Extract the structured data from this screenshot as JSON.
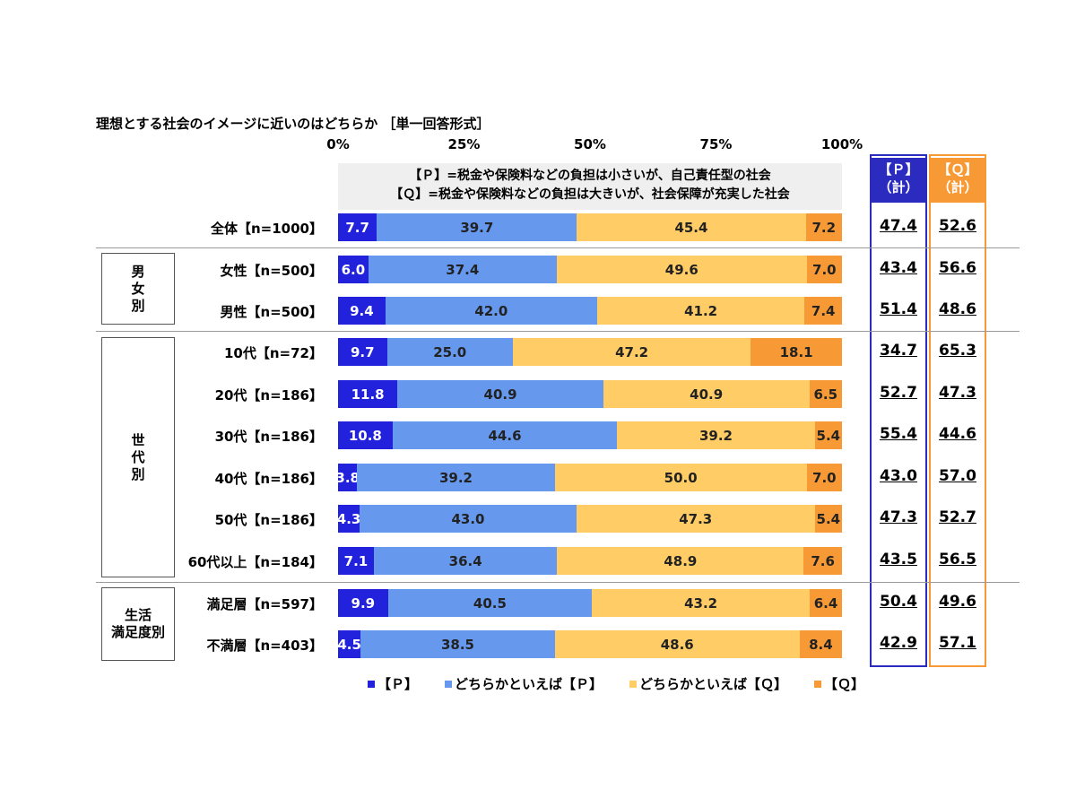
{
  "title": "理想とする社会のイメージに近いのはどちらか ［単一回答形式］",
  "definitions": {
    "p": "【Ｐ】=税金や保険料などの負担は小さいが、自己責任型の社会",
    "q": "【Ｑ】=税金や保険料などの負担は大きいが、社会保障が充実した社会"
  },
  "groups": [
    {
      "label": "男\n女\n別"
    },
    {
      "label": "世\n代\n別"
    },
    {
      "label": "生活\n満足度別"
    }
  ],
  "totals_headers": {
    "p": "【Ｐ】\n（計）",
    "q": "【Ｑ】\n（計）"
  },
  "legend": [
    "■【Ｐ】",
    "■どちらかといえば【Ｐ】",
    "■どちらかといえば【Ｑ】",
    "■【Ｑ】"
  ],
  "colors": {
    "p": "#2222dd",
    "bp": "#6699ee",
    "bq": "#ffcc66",
    "q": "#f79a36",
    "p_total_border": "#2b2bbf",
    "q_total_border": "#f79a36"
  },
  "chart_data": {
    "type": "bar",
    "orientation": "horizontal-stacked-100",
    "x_ticks": [
      "0%",
      "25%",
      "50%",
      "75%",
      "100%"
    ],
    "xlim": [
      0,
      100
    ],
    "series_names": [
      "【Ｐ】",
      "どちらかといえば【Ｐ】",
      "どちらかといえば【Ｑ】",
      "【Ｑ】"
    ],
    "rows": [
      {
        "label": "全体【n=1000】",
        "values": [
          7.7,
          39.7,
          45.4,
          7.2
        ],
        "total_p": "47.4",
        "total_q": "52.6"
      },
      {
        "label": "女性【n=500】",
        "values": [
          6.0,
          37.4,
          49.6,
          7.0
        ],
        "total_p": "43.4",
        "total_q": "56.6"
      },
      {
        "label": "男性【n=500】",
        "values": [
          9.4,
          42.0,
          41.2,
          7.4
        ],
        "total_p": "51.4",
        "total_q": "48.6"
      },
      {
        "label": "10代【n=72】",
        "values": [
          9.7,
          25.0,
          47.2,
          18.1
        ],
        "total_p": "34.7",
        "total_q": "65.3"
      },
      {
        "label": "20代【n=186】",
        "values": [
          11.8,
          40.9,
          40.9,
          6.5
        ],
        "total_p": "52.7",
        "total_q": "47.3"
      },
      {
        "label": "30代【n=186】",
        "values": [
          10.8,
          44.6,
          39.2,
          5.4
        ],
        "total_p": "55.4",
        "total_q": "44.6"
      },
      {
        "label": "40代【n=186】",
        "values": [
          3.8,
          39.2,
          50.0,
          7.0
        ],
        "total_p": "43.0",
        "total_q": "57.0"
      },
      {
        "label": "50代【n=186】",
        "values": [
          4.3,
          43.0,
          47.3,
          5.4
        ],
        "total_p": "47.3",
        "total_q": "52.7"
      },
      {
        "label": "60代以上【n=184】",
        "values": [
          7.1,
          36.4,
          48.9,
          7.6
        ],
        "total_p": "43.5",
        "total_q": "56.5"
      },
      {
        "label": "満足層【n=597】",
        "values": [
          9.9,
          40.5,
          43.2,
          6.4
        ],
        "total_p": "50.4",
        "total_q": "49.6"
      },
      {
        "label": "不満層【n=403】",
        "values": [
          4.5,
          38.5,
          48.6,
          8.4
        ],
        "total_p": "42.9",
        "total_q": "57.1"
      }
    ]
  }
}
